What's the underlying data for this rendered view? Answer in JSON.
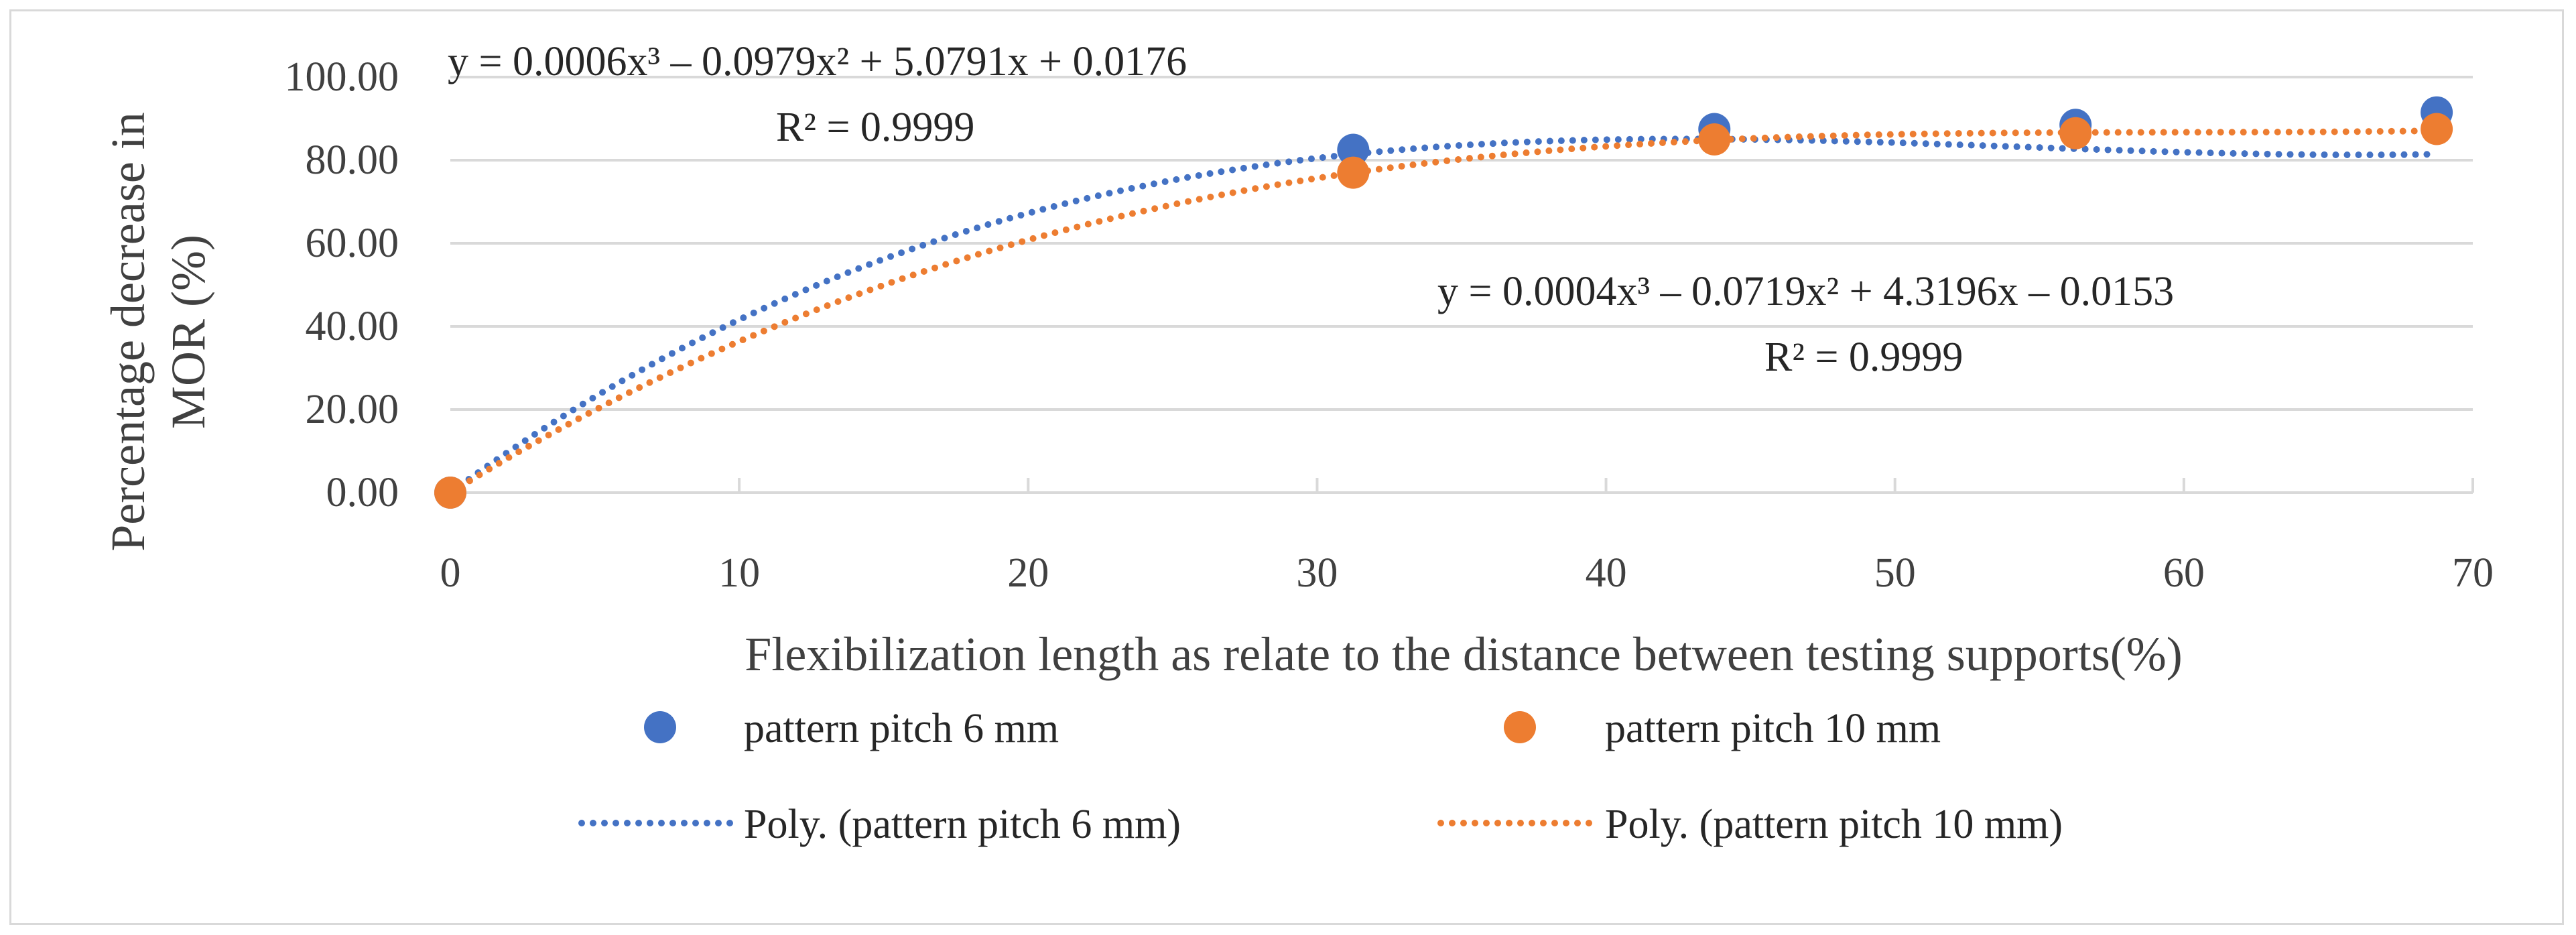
{
  "chart_data": {
    "type": "scatter",
    "xlabel": "Flexibilization length as relate to the distance between testing supports(%)",
    "ylabel_lines": [
      "Percentage decrease in",
      "MOR (%)"
    ],
    "xlim": [
      0,
      70
    ],
    "ylim": [
      0,
      100
    ],
    "x_ticks": [
      "0",
      "10",
      "20",
      "30",
      "40",
      "50",
      "60",
      "70"
    ],
    "y_ticks": [
      "0.00",
      "20.00",
      "40.00",
      "60.00",
      "80.00",
      "100.00"
    ],
    "grid": "horizontal",
    "series": [
      {
        "name": "pattern pitch 6 mm",
        "color": "#4472c4",
        "x": [
          0,
          31.25,
          43.75,
          56.25,
          68.75
        ],
        "y": [
          0,
          82.5,
          87.5,
          88.5,
          91.5
        ],
        "trendline": {
          "name": "Poly. (pattern pitch 6 mm)",
          "coeffs": [
            0.0006,
            -0.0979,
            5.0791,
            0.0176
          ],
          "equation": "y = 0.0006x³ – 0.0979x² + 5.0791x + 0.0176",
          "r2": "R² = 0.9999"
        }
      },
      {
        "name": "pattern pitch 10 mm",
        "color": "#ed7d31",
        "x": [
          0,
          31.25,
          43.75,
          56.25,
          68.75
        ],
        "y": [
          0,
          77,
          85,
          86.5,
          87.5
        ],
        "trendline": {
          "name": "Poly. (pattern pitch 10 mm)",
          "coeffs": [
            0.0004,
            -0.0719,
            4.3196,
            -0.0153
          ],
          "equation": "y = 0.0004x³ – 0.0719x² + 4.3196x – 0.0153",
          "r2": "R² = 0.9999"
        }
      }
    ],
    "legend": [
      "pattern pitch 6 mm",
      "pattern pitch 10 mm",
      "Poly. (pattern pitch 6 mm)",
      "Poly. (pattern pitch 10 mm)"
    ],
    "legend_position": "bottom"
  }
}
